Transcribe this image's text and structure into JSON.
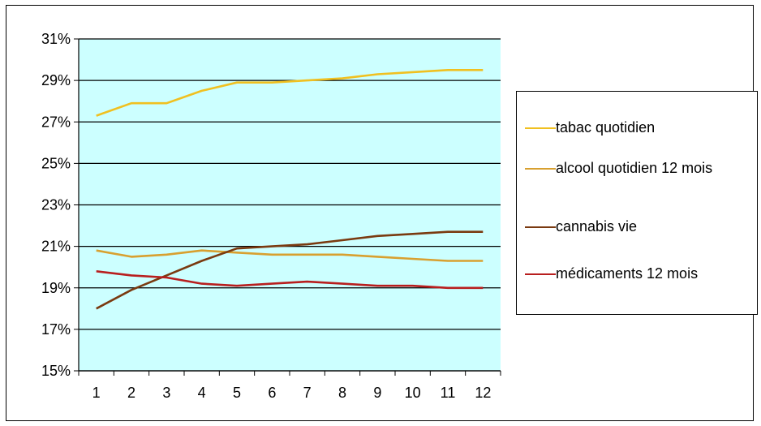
{
  "chart_data": {
    "type": "line",
    "title": "",
    "xlabel": "",
    "ylabel": "",
    "categories": [
      "1",
      "2",
      "3",
      "4",
      "5",
      "6",
      "7",
      "8",
      "9",
      "10",
      "11",
      "12"
    ],
    "yticks": [
      "15%",
      "17%",
      "19%",
      "21%",
      "23%",
      "25%",
      "27%",
      "29%",
      "31%"
    ],
    "ylim": [
      15,
      31
    ],
    "grid": "horizontal",
    "plot_background": "#ccffff",
    "legend_position": "right",
    "series": [
      {
        "name": "tabac quotidien",
        "color": "#f0c020",
        "values": [
          27.3,
          27.9,
          27.9,
          28.5,
          28.9,
          28.9,
          29.0,
          29.1,
          29.3,
          29.4,
          29.5,
          29.5
        ]
      },
      {
        "name": "alcool quotidien 12 mois",
        "color": "#d8a030",
        "values": [
          20.8,
          20.5,
          20.6,
          20.8,
          20.7,
          20.6,
          20.6,
          20.6,
          20.5,
          20.4,
          20.3,
          20.3
        ]
      },
      {
        "name": "cannabis vie",
        "color": "#7a3a10",
        "values": [
          18.0,
          18.9,
          19.6,
          20.3,
          20.9,
          21.0,
          21.1,
          21.3,
          21.5,
          21.6,
          21.7,
          21.7
        ]
      },
      {
        "name": "médicaments 12 mois",
        "color": "#b81e1e",
        "values": [
          19.8,
          19.6,
          19.5,
          19.2,
          19.1,
          19.2,
          19.3,
          19.2,
          19.1,
          19.1,
          19.0,
          19.0
        ]
      }
    ]
  }
}
